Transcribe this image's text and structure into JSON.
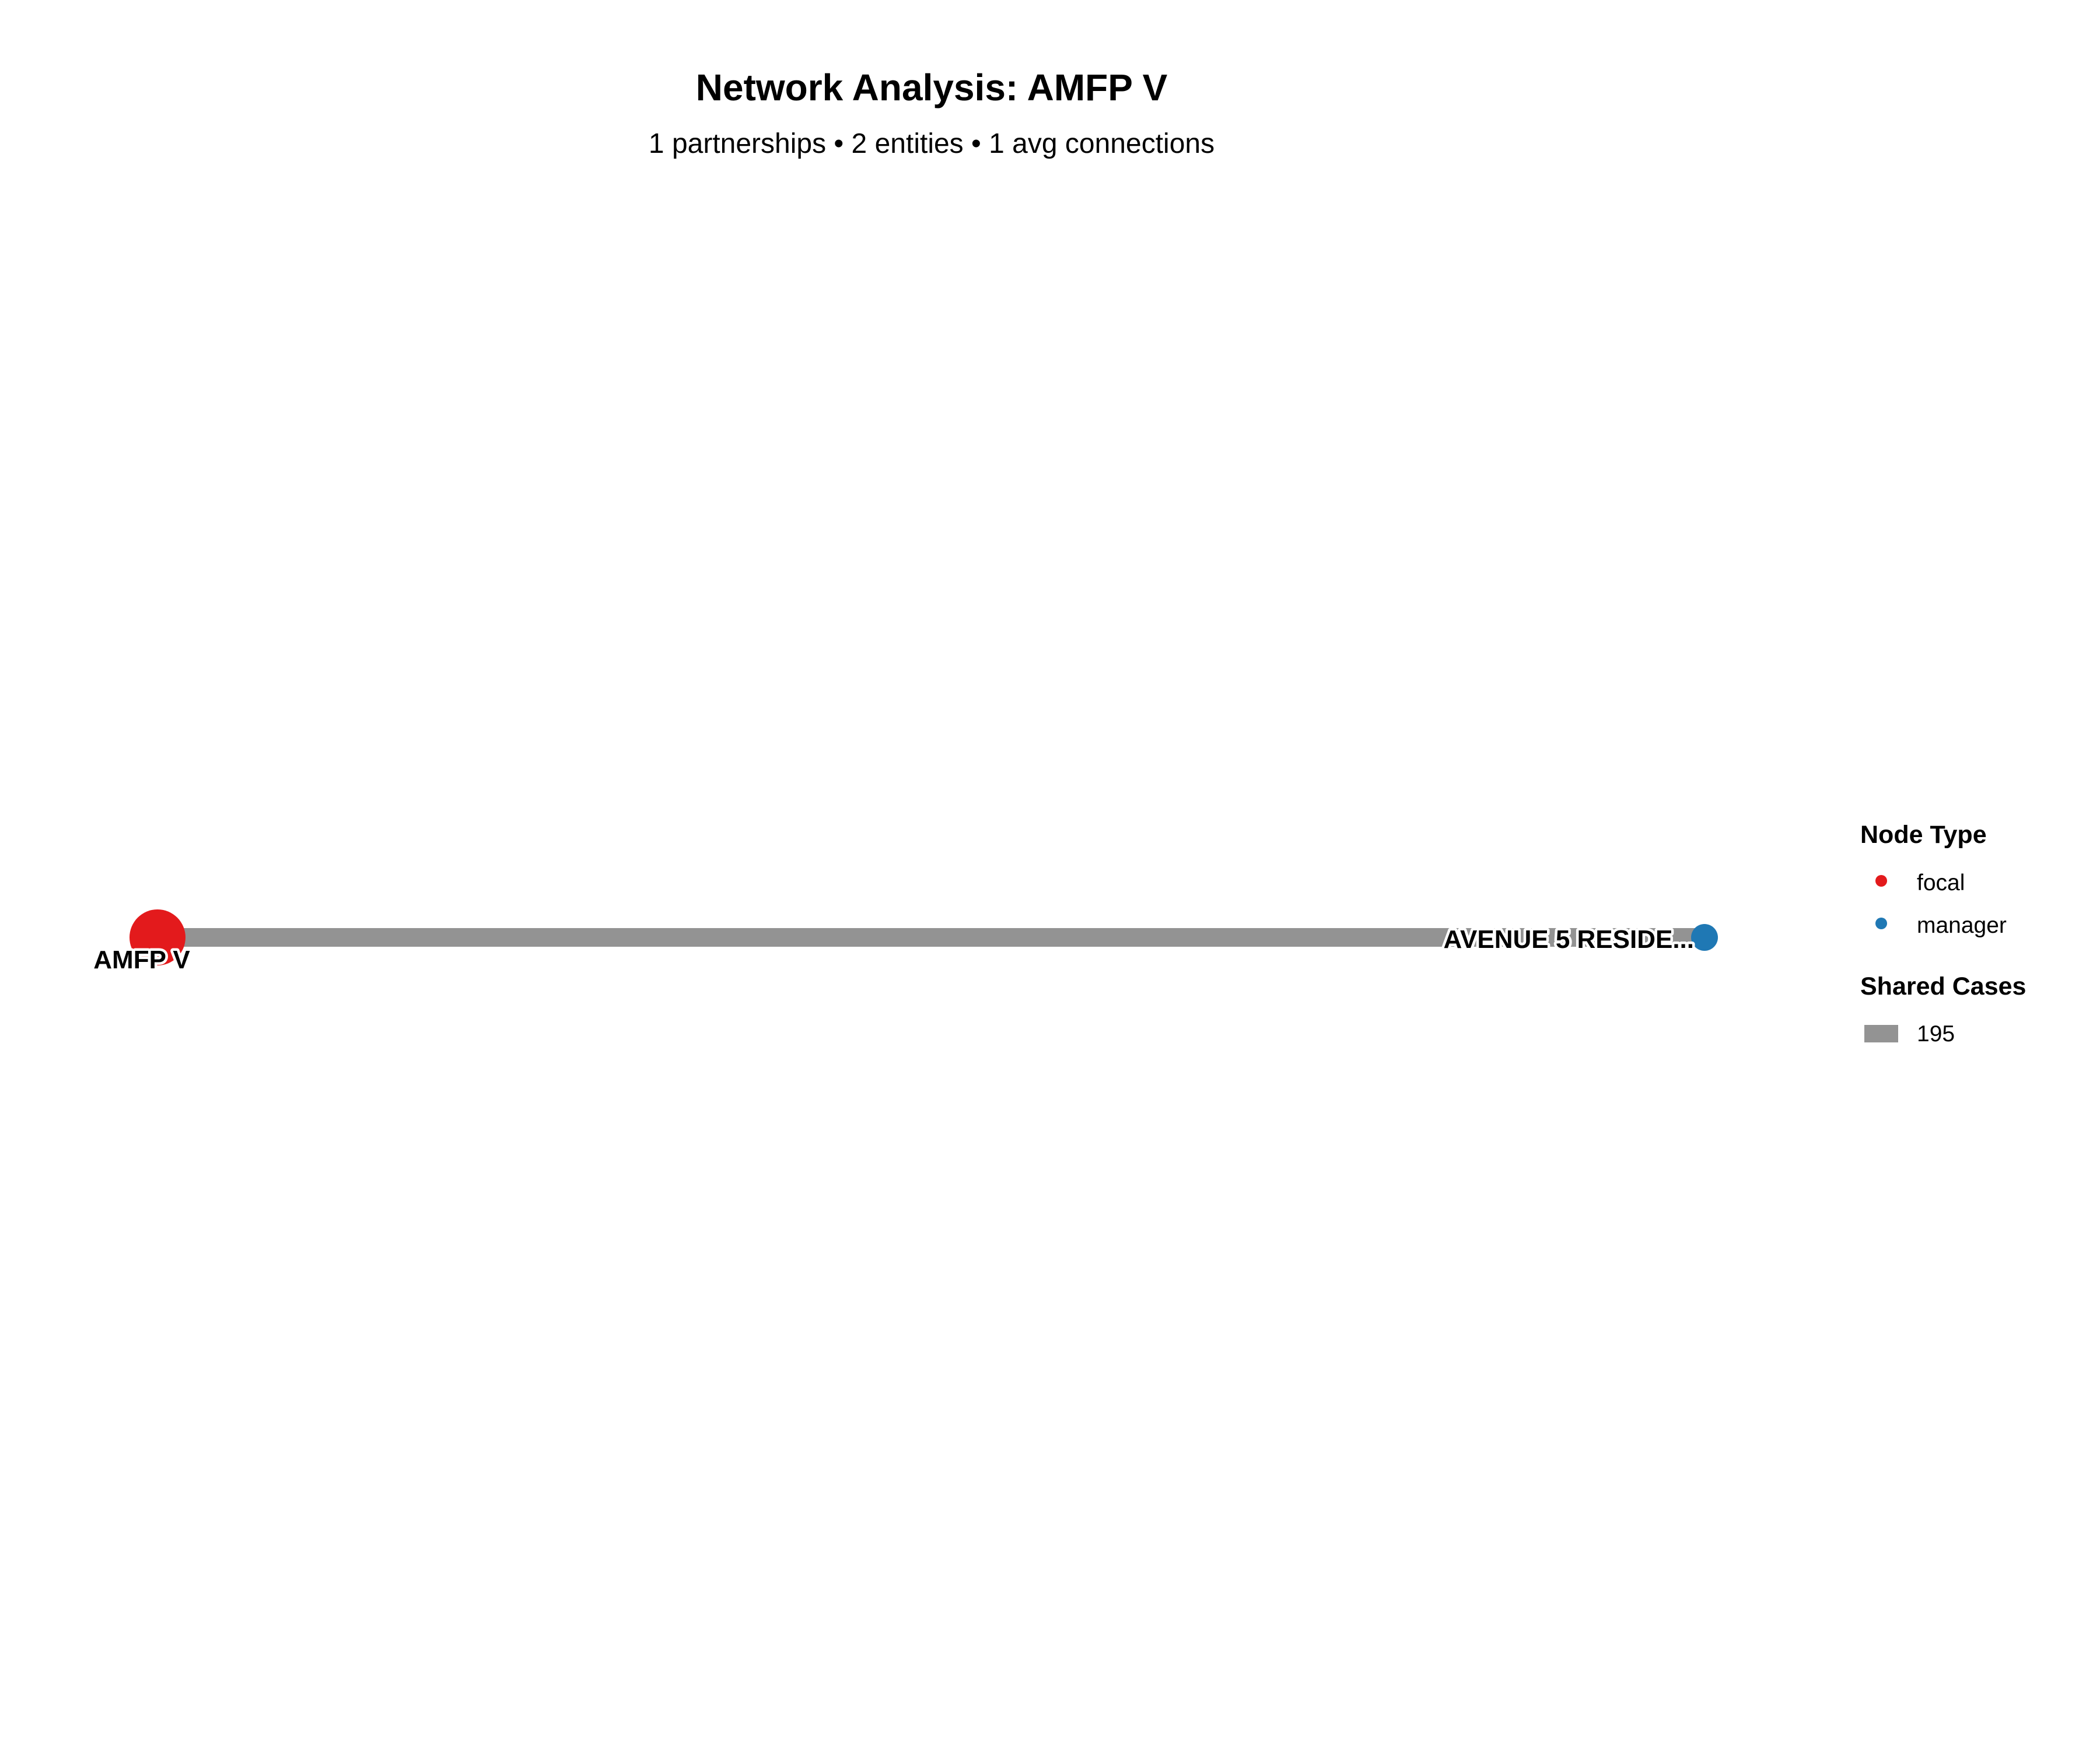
{
  "header": {
    "title": "Network Analysis: AMFP V",
    "subtitle": "1 partnerships • 2 entities • 1 avg connections"
  },
  "network": {
    "nodes": [
      {
        "id": "amfp",
        "label": "AMFP V",
        "type": "focal",
        "color": "#E31A1C"
      },
      {
        "id": "avenue5",
        "label": "AVENUE 5 RESIDE...",
        "type": "manager",
        "color": "#1F78B4"
      }
    ],
    "edges": [
      {
        "from": "amfp",
        "to": "avenue5",
        "shared_cases": 195,
        "color": "#939393"
      }
    ]
  },
  "legend": {
    "node_type_title": "Node Type",
    "node_types": [
      {
        "label": "focal",
        "color": "#E31A1C"
      },
      {
        "label": "manager",
        "color": "#1F78B4"
      }
    ],
    "shared_cases_title": "Shared Cases",
    "shared_cases_items": [
      {
        "label": "195",
        "color": "#939393"
      }
    ]
  }
}
